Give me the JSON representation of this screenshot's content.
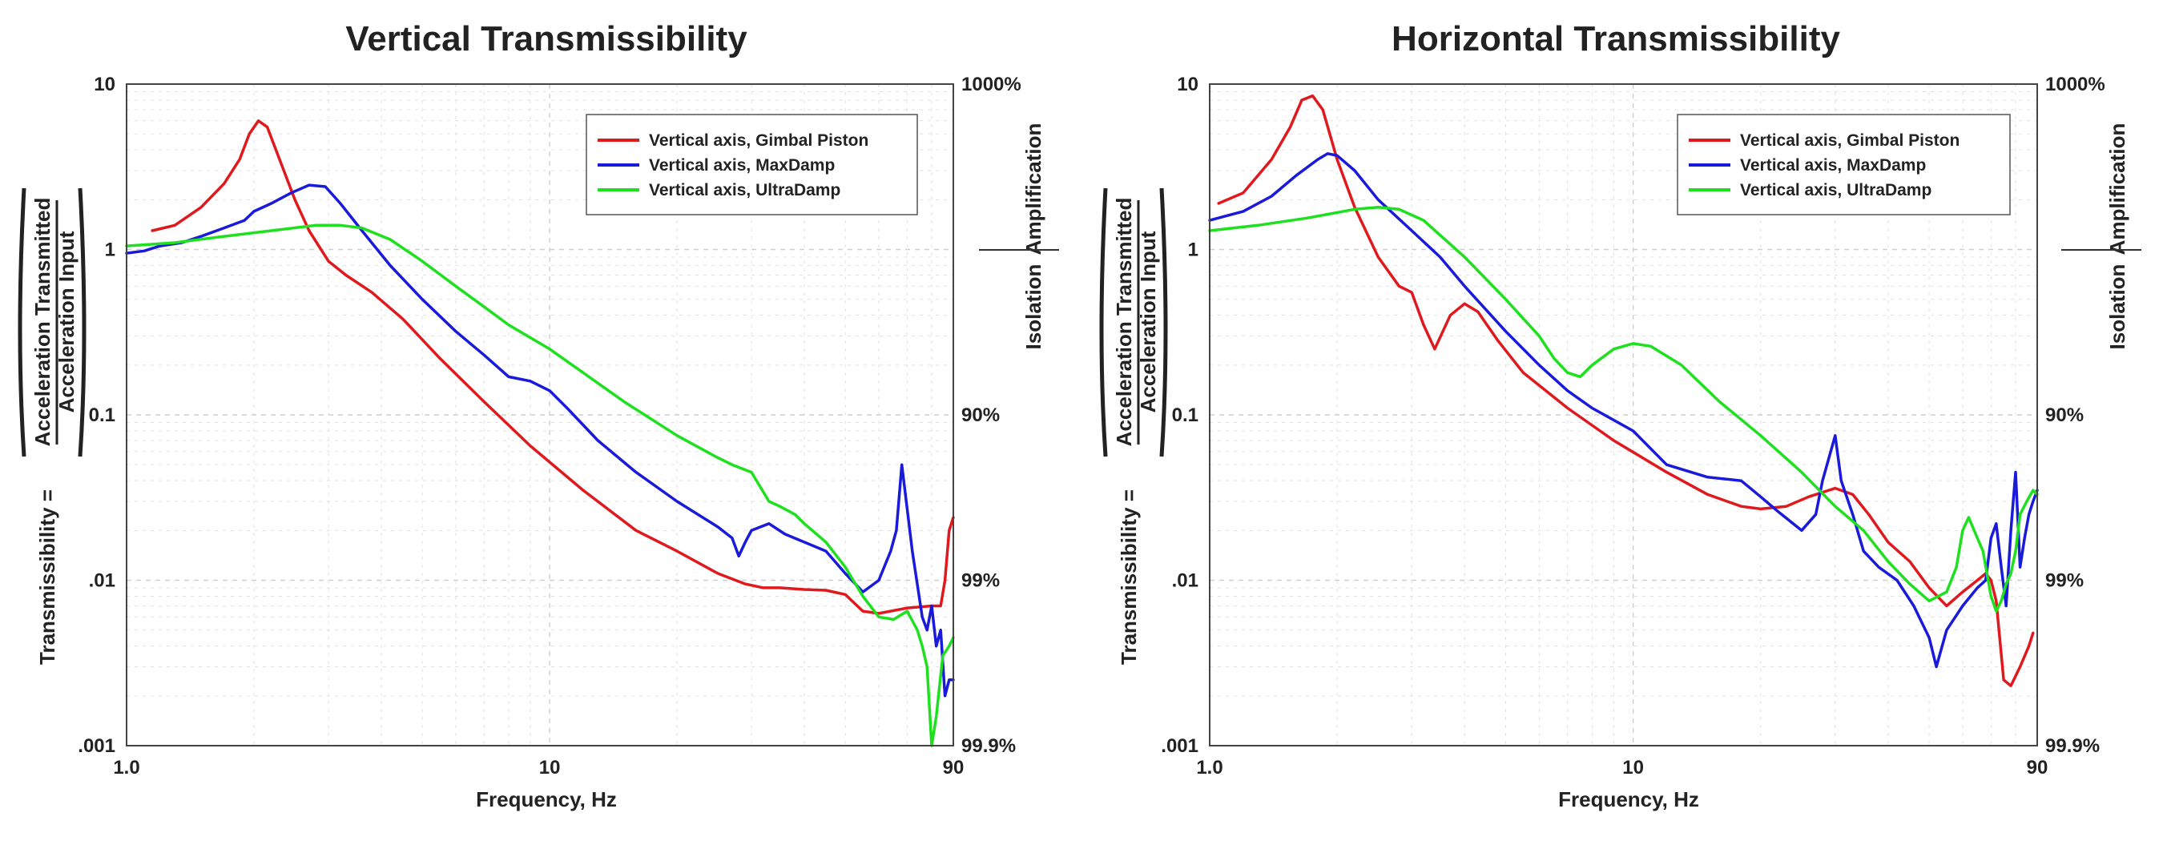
{
  "chart_data": [
    {
      "type": "line",
      "title": "Vertical Transmissibility",
      "xlabel": "Frequency, Hz",
      "ylabel_lead": "Transmissibility =",
      "ylabel_numerator": "Acceleration Transmitted",
      "ylabel_denominator": "Acceleration Input",
      "x_scale": "log",
      "y_scale": "log",
      "xlim": [
        1.0,
        90
      ],
      "ylim": [
        0.001,
        10
      ],
      "x_ticks": [
        "1.0",
        "10",
        "90"
      ],
      "y_ticks": [
        "10",
        "1",
        "0.1",
        ".01",
        ".001"
      ],
      "right_ticks": [
        "1000%",
        "90%",
        "99%",
        "99.9%"
      ],
      "right_label_top": "Amplification",
      "right_label_bottom": "Isolation",
      "grid": true,
      "legend_position": "top-right",
      "series": [
        {
          "name": "Vertical axis, Gimbal Piston",
          "color": "#e0191e",
          "x": [
            1.15,
            1.3,
            1.5,
            1.7,
            1.85,
            1.95,
            2.05,
            2.15,
            2.3,
            2.5,
            2.7,
            3.0,
            3.3,
            3.8,
            4.5,
            5.5,
            7,
            9,
            12,
            16,
            20,
            25,
            29,
            32,
            35,
            40,
            45,
            50,
            55,
            60,
            70,
            80,
            84,
            86,
            88,
            90
          ],
          "y": [
            1.3,
            1.4,
            1.8,
            2.5,
            3.5,
            5.0,
            6.0,
            5.5,
            3.5,
            2.0,
            1.3,
            0.85,
            0.7,
            0.55,
            0.38,
            0.22,
            0.12,
            0.065,
            0.035,
            0.02,
            0.015,
            0.011,
            0.0095,
            0.009,
            0.009,
            0.0088,
            0.0087,
            0.0082,
            0.0065,
            0.0063,
            0.0068,
            0.007,
            0.007,
            0.01,
            0.02,
            0.024
          ]
        },
        {
          "name": "Vertical axis, MaxDamp",
          "color": "#1a1adb",
          "x": [
            1.0,
            1.1,
            1.2,
            1.35,
            1.5,
            1.7,
            1.9,
            2.0,
            2.2,
            2.45,
            2.7,
            2.95,
            3.2,
            3.6,
            4.2,
            5,
            6,
            7,
            8,
            9,
            10,
            11,
            13,
            16,
            20,
            25,
            27,
            28,
            29,
            30,
            33,
            36,
            40,
            45,
            50,
            55,
            60,
            64,
            66,
            68,
            72,
            76,
            78,
            80,
            82,
            84,
            86,
            88,
            90
          ],
          "y": [
            0.95,
            0.98,
            1.05,
            1.1,
            1.2,
            1.35,
            1.5,
            1.7,
            1.9,
            2.2,
            2.45,
            2.4,
            1.9,
            1.3,
            0.8,
            0.5,
            0.32,
            0.23,
            0.17,
            0.16,
            0.14,
            0.11,
            0.07,
            0.045,
            0.03,
            0.021,
            0.018,
            0.014,
            0.017,
            0.02,
            0.022,
            0.019,
            0.017,
            0.015,
            0.011,
            0.0085,
            0.01,
            0.015,
            0.02,
            0.05,
            0.015,
            0.006,
            0.005,
            0.007,
            0.004,
            0.005,
            0.002,
            0.0025,
            0.0025
          ]
        },
        {
          "name": "Vertical axis, UltraDamp",
          "color": "#1fe01f",
          "x": [
            1.0,
            1.3,
            1.7,
            2.2,
            2.8,
            3.2,
            3.6,
            4.2,
            5,
            6,
            7,
            8,
            10,
            12,
            15,
            20,
            25,
            27,
            30,
            33,
            35,
            38,
            40,
            45,
            50,
            55,
            60,
            65,
            70,
            74,
            76,
            78,
            80,
            82,
            85,
            88,
            90
          ],
          "y": [
            1.05,
            1.1,
            1.2,
            1.3,
            1.4,
            1.4,
            1.35,
            1.15,
            0.85,
            0.6,
            0.45,
            0.35,
            0.25,
            0.18,
            0.12,
            0.075,
            0.055,
            0.05,
            0.045,
            0.03,
            0.028,
            0.025,
            0.022,
            0.017,
            0.012,
            0.008,
            0.006,
            0.0058,
            0.0065,
            0.005,
            0.004,
            0.003,
            0.001,
            0.0015,
            0.0035,
            0.004,
            0.0045
          ]
        }
      ]
    },
    {
      "type": "line",
      "title": "Horizontal Transmissibility",
      "xlabel": "Frequency, Hz",
      "ylabel_lead": "Transmissibility =",
      "ylabel_numerator": "Acceleration Transmitted",
      "ylabel_denominator": "Acceleration Input",
      "x_scale": "log",
      "y_scale": "log",
      "xlim": [
        1.0,
        90
      ],
      "ylim": [
        0.001,
        10
      ],
      "x_ticks": [
        "1.0",
        "10",
        "90"
      ],
      "y_ticks": [
        "10",
        "1",
        "0.1",
        ".01",
        ".001"
      ],
      "right_ticks": [
        "1000%",
        "90%",
        "99%",
        "99.9%"
      ],
      "right_label_top": "Amplification",
      "right_label_bottom": "Isolation",
      "grid": true,
      "legend_position": "top-right",
      "series": [
        {
          "name": "Vertical axis, Gimbal Piston",
          "color": "#e0191e",
          "x": [
            1.05,
            1.2,
            1.4,
            1.55,
            1.65,
            1.75,
            1.85,
            2.0,
            2.2,
            2.5,
            2.8,
            3.0,
            3.2,
            3.4,
            3.7,
            4.0,
            4.3,
            4.8,
            5.5,
            7,
            9,
            12,
            15,
            18,
            20,
            23,
            26,
            28,
            30,
            33,
            36,
            40,
            45,
            50,
            55,
            60,
            65,
            68,
            70,
            72,
            75,
            78,
            82,
            86,
            88
          ],
          "y": [
            1.9,
            2.2,
            3.5,
            5.5,
            8.0,
            8.5,
            7.0,
            3.5,
            1.8,
            0.9,
            0.6,
            0.55,
            0.35,
            0.25,
            0.4,
            0.47,
            0.42,
            0.28,
            0.18,
            0.11,
            0.07,
            0.045,
            0.033,
            0.028,
            0.027,
            0.028,
            0.032,
            0.034,
            0.036,
            0.033,
            0.025,
            0.017,
            0.013,
            0.009,
            0.007,
            0.0085,
            0.01,
            0.011,
            0.01,
            0.0075,
            0.0025,
            0.0023,
            0.003,
            0.004,
            0.0048
          ]
        },
        {
          "name": "Vertical axis, MaxDamp",
          "color": "#1a1adb",
          "x": [
            1.0,
            1.2,
            1.4,
            1.6,
            1.8,
            1.9,
            2.0,
            2.2,
            2.5,
            3,
            3.5,
            4,
            5,
            6,
            7,
            8,
            10,
            12,
            15,
            18,
            20,
            22,
            25,
            27,
            28,
            30,
            31,
            33,
            35,
            38,
            42,
            46,
            50,
            52,
            55,
            60,
            65,
            68,
            70,
            72,
            74,
            76,
            78,
            80,
            82,
            84,
            86,
            88,
            90
          ],
          "y": [
            1.5,
            1.7,
            2.1,
            2.8,
            3.5,
            3.8,
            3.7,
            3.0,
            2.0,
            1.3,
            0.9,
            0.6,
            0.32,
            0.2,
            0.14,
            0.11,
            0.08,
            0.05,
            0.042,
            0.04,
            0.032,
            0.026,
            0.02,
            0.025,
            0.04,
            0.075,
            0.04,
            0.025,
            0.015,
            0.012,
            0.01,
            0.007,
            0.0045,
            0.003,
            0.005,
            0.007,
            0.009,
            0.01,
            0.018,
            0.022,
            0.012,
            0.007,
            0.02,
            0.045,
            0.012,
            0.018,
            0.025,
            0.03,
            0.035
          ]
        },
        {
          "name": "Vertical axis, UltraDamp",
          "color": "#1fe01f",
          "x": [
            1.0,
            1.3,
            1.7,
            2.2,
            2.5,
            2.8,
            3.2,
            4,
            5,
            6,
            6.5,
            7,
            7.5,
            8,
            9,
            10,
            11,
            13,
            16,
            20,
            25,
            30,
            35,
            40,
            45,
            50,
            55,
            58,
            60,
            62,
            65,
            67,
            70,
            72,
            74,
            76,
            78,
            80,
            82,
            85,
            88,
            90
          ],
          "y": [
            1.3,
            1.4,
            1.55,
            1.75,
            1.8,
            1.75,
            1.5,
            0.9,
            0.5,
            0.3,
            0.22,
            0.18,
            0.17,
            0.2,
            0.25,
            0.27,
            0.26,
            0.2,
            0.12,
            0.075,
            0.045,
            0.028,
            0.02,
            0.013,
            0.0095,
            0.0075,
            0.0085,
            0.012,
            0.02,
            0.024,
            0.018,
            0.015,
            0.008,
            0.0065,
            0.0075,
            0.0095,
            0.011,
            0.015,
            0.025,
            0.03,
            0.035,
            0.033
          ]
        }
      ]
    }
  ]
}
